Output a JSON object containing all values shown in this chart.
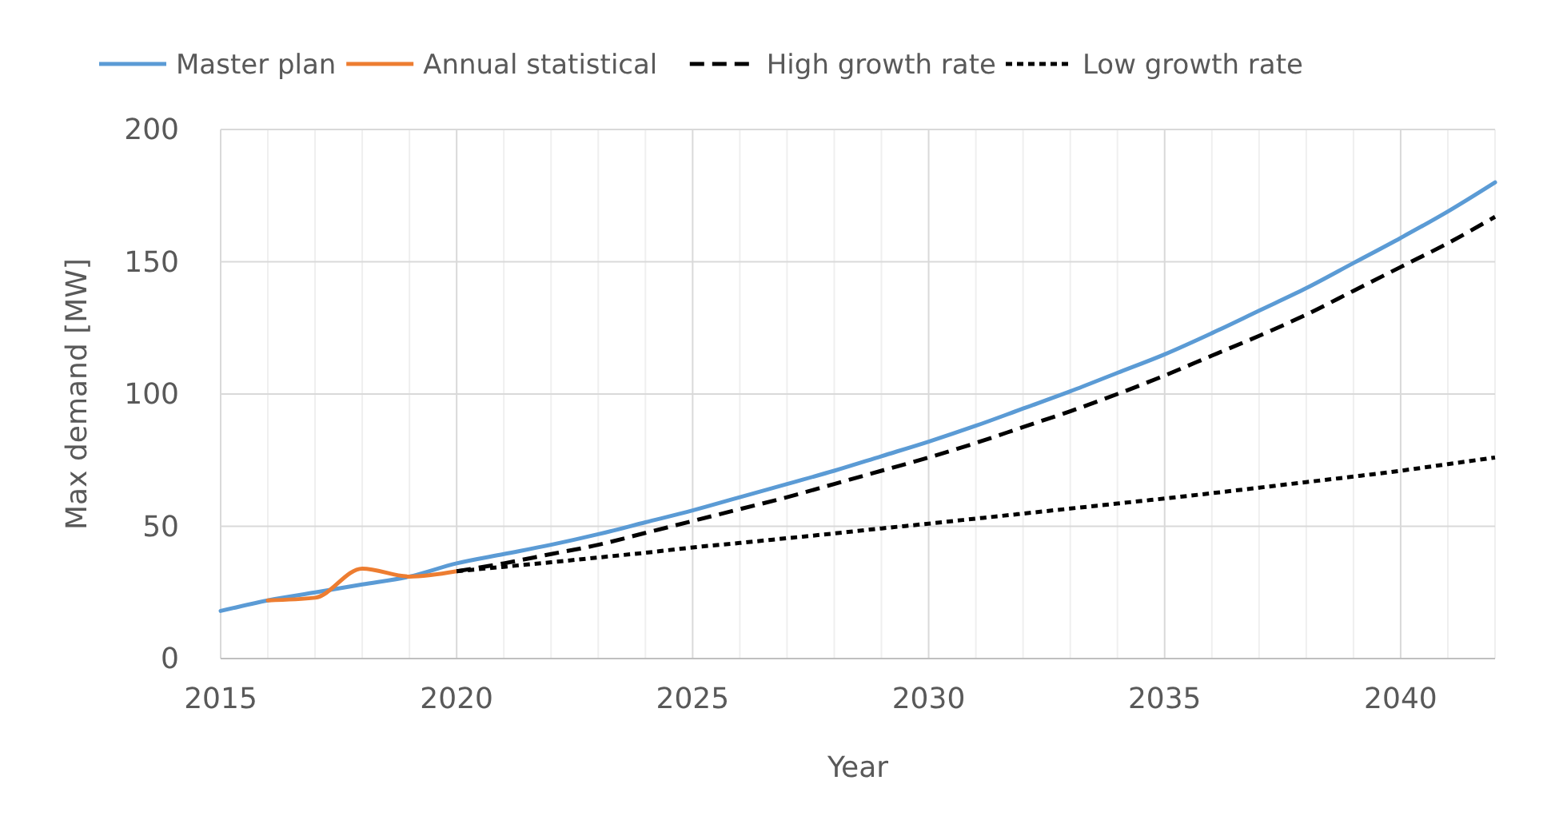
{
  "chart_data": {
    "type": "line",
    "xlabel": "Year",
    "ylabel": "Max demand [MW]",
    "xlim": [
      2015,
      2042
    ],
    "ylim": [
      0,
      200
    ],
    "xticks": [
      2015,
      {
        "value": 2016,
        "label": null
      },
      {
        "value": 2017,
        "label": null
      },
      {
        "value": 2018,
        "label": null
      },
      {
        "value": 2019,
        "label": null
      },
      2020,
      {
        "value": 2021,
        "label": null
      },
      {
        "value": 2022,
        "label": null
      },
      {
        "value": 2023,
        "label": null
      },
      {
        "value": 2024,
        "label": null
      },
      2025,
      {
        "value": 2026,
        "label": null
      },
      {
        "value": 2027,
        "label": null
      },
      {
        "value": 2028,
        "label": null
      },
      {
        "value": 2029,
        "label": null
      },
      2030,
      {
        "value": 2031,
        "label": null
      },
      {
        "value": 2032,
        "label": null
      },
      {
        "value": 2033,
        "label": null
      },
      {
        "value": 2034,
        "label": null
      },
      2035,
      {
        "value": 2036,
        "label": null
      },
      {
        "value": 2037,
        "label": null
      },
      {
        "value": 2038,
        "label": null
      },
      {
        "value": 2039,
        "label": null
      },
      2040,
      {
        "value": 2041,
        "label": null
      },
      {
        "value": 2042,
        "label": null
      }
    ],
    "yticks": [
      0,
      50,
      100,
      150,
      200
    ],
    "grid": true,
    "legend": "top",
    "marker": "none",
    "series": [
      {
        "name": "Master plan",
        "color": "#5b9bd5",
        "line_style": "solid",
        "x": [
          2015,
          2016,
          2017,
          2018,
          2019,
          2020,
          2021,
          2022,
          2023,
          2024,
          2025,
          2026,
          2027,
          2028,
          2029,
          2030,
          2031,
          2032,
          2033,
          2034,
          2035,
          2036,
          2037,
          2038,
          2039,
          2040,
          2041,
          2042
        ],
        "values": [
          18,
          22,
          25,
          28,
          31,
          36,
          39.5,
          43,
          47,
          51.5,
          56,
          61,
          66,
          71,
          76.5,
          82,
          88,
          94.5,
          101,
          108,
          115,
          123,
          131.5,
          140,
          149.5,
          159,
          169,
          180
        ]
      },
      {
        "name": "Annual statistical",
        "color": "#ed7d31",
        "line_style": "solid",
        "x": [
          2016,
          2017,
          2018,
          2019,
          2020
        ],
        "values": [
          22,
          23,
          34,
          31,
          33
        ]
      },
      {
        "name": "High growth rate",
        "color": "#000000",
        "line_style": "dashed",
        "x": [
          2020,
          2021,
          2022,
          2023,
          2024,
          2025,
          2026,
          2027,
          2028,
          2029,
          2030,
          2031,
          2032,
          2033,
          2034,
          2035,
          2036,
          2037,
          2038,
          2039,
          2040,
          2041,
          2042
        ],
        "values": [
          33,
          36,
          39.5,
          43,
          47.5,
          52,
          56.5,
          61,
          66,
          71,
          76,
          81.5,
          87.5,
          93.5,
          100,
          107,
          114.5,
          122,
          130,
          139,
          148,
          157,
          167
        ]
      },
      {
        "name": "Low growth rate",
        "color": "#000000",
        "line_style": "dotted",
        "x": [
          2020,
          2021,
          2022,
          2023,
          2024,
          2025,
          2026,
          2027,
          2028,
          2029,
          2030,
          2031,
          2032,
          2033,
          2034,
          2035,
          2036,
          2037,
          2038,
          2039,
          2040,
          2041,
          2042
        ],
        "values": [
          33,
          34.7,
          36.4,
          38.2,
          40,
          42,
          43.7,
          45.5,
          47.3,
          49.2,
          51,
          52.9,
          54.8,
          56.7,
          58.6,
          60.5,
          62.5,
          64.6,
          66.7,
          68.8,
          71,
          73.5,
          76
        ]
      }
    ]
  }
}
